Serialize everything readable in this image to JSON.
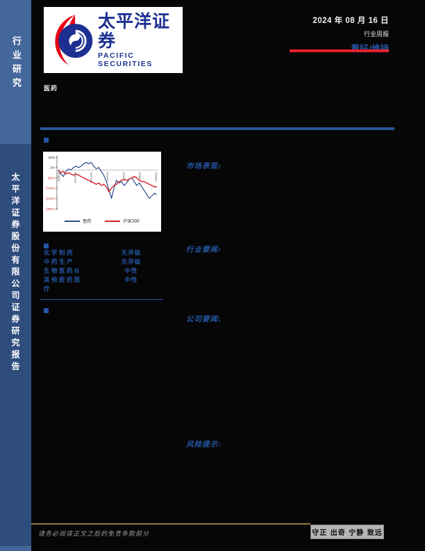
{
  "header": {
    "date": "2024 年 08 月 16 日",
    "report_type": "行业周报",
    "rating": "看好/维持",
    "industry": "医药"
  },
  "sidebar": {
    "top_label": "行业研究",
    "bottom_label": "太平洋证券股份有限公司证券研究报告"
  },
  "logo": {
    "cn": "太平洋证券",
    "en": "PACIFIC SECURITIES"
  },
  "sections": {
    "market": "市场表现:",
    "industry_news": "行业要闻:",
    "company_news": "公司要闻:",
    "risk": "风险提示:"
  },
  "ratings_table": {
    "rows": [
      {
        "name": "化学制药",
        "rating": "无评级"
      },
      {
        "name": "中药生产",
        "rating": "无评级"
      },
      {
        "name": "生物医药Ⅱ",
        "rating": "中性"
      },
      {
        "name": "其他医药医疗",
        "rating": "中性"
      }
    ]
  },
  "footer": {
    "disclaimer": "请务必阅读正文之后的免责条款部分",
    "motto": "守正 出奇 宁静 致远"
  },
  "colors": {
    "accent_blue": "#2456a4",
    "header_bar_blue": "#2b5797",
    "rating_red": "#e8202e",
    "sidebar_light": "#45689c",
    "sidebar_dark": "#2e4d7d",
    "gold_line": "#8f7d3a",
    "chart_blue": "#2b4d8c",
    "chart_red": "#d62128"
  },
  "chart_data": {
    "type": "line",
    "title": "",
    "xlabel": "",
    "ylabel": "",
    "ylim": [
      -30,
      10
    ],
    "y_ticks": [
      10,
      2,
      -6,
      -14,
      -22,
      -30
    ],
    "y_tick_labels": [
      "10%",
      "2%",
      "(6%)",
      "(14%)",
      "(22%)",
      "(30%)"
    ],
    "x_tick_labels": [
      "23/8/14",
      "23/10/14",
      "23/12/14",
      "24/2/14",
      "24/4/14",
      "24/6/14",
      "24/8/14"
    ],
    "grid": "zero-line-only",
    "legend_position": "bottom",
    "series": [
      {
        "name": "医药",
        "color": "#2b4d8c",
        "values": [
          0,
          -3,
          -5,
          -1,
          1,
          0,
          2,
          3,
          2,
          3,
          5,
          6,
          5,
          6,
          3,
          1,
          2,
          -1,
          -4,
          -9,
          -15,
          -22,
          -14,
          -8,
          -10,
          -9,
          -12,
          -10,
          -7,
          -6,
          -9,
          -12,
          -10,
          -13,
          -16,
          -19,
          -22,
          -20,
          -18,
          -19
        ]
      },
      {
        "name": "沪深300",
        "color": "#d62128",
        "values": [
          0,
          -2,
          -1,
          -3,
          -2,
          -3,
          -4,
          -3,
          -4,
          -5,
          -6,
          -7,
          -8,
          -9,
          -10,
          -11,
          -10,
          -12,
          -11,
          -13,
          -17,
          -14,
          -12,
          -11,
          -9,
          -8,
          -7,
          -8,
          -7,
          -6,
          -5,
          -6,
          -8,
          -9,
          -9,
          -10,
          -11,
          -12,
          -13,
          -13
        ]
      }
    ]
  }
}
